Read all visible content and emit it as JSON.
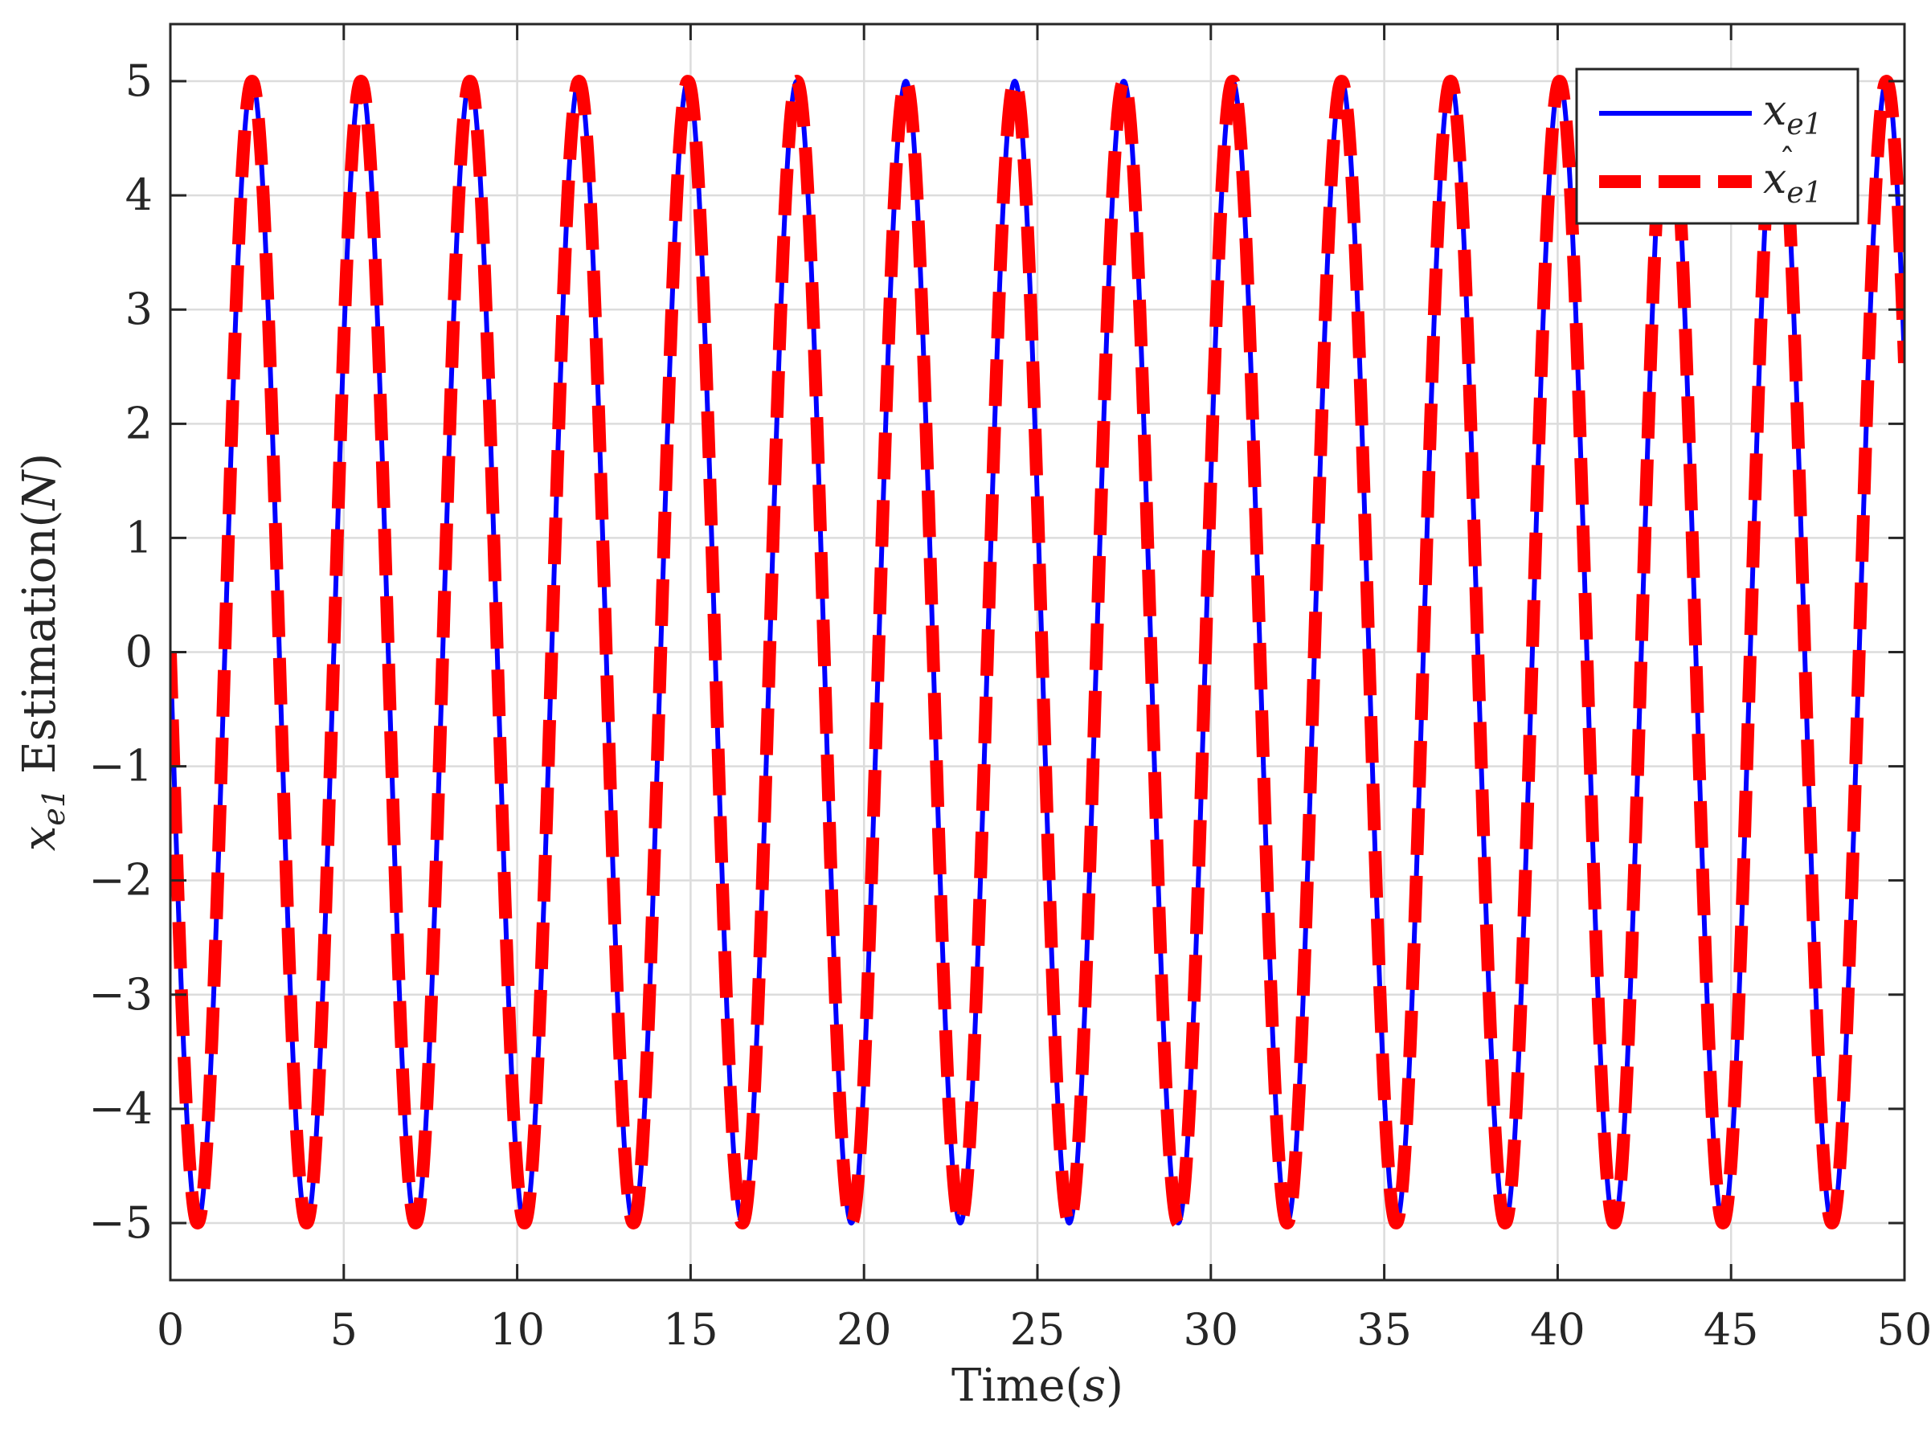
{
  "chart_data": {
    "type": "line",
    "xlabel": "Time(s)",
    "xlabel_parts": {
      "text": "Time(",
      "var": "s",
      "close": ")"
    },
    "ylabel": "x_e1 Estimation(N)",
    "ylabel_parts": {
      "var": "x",
      "sub": "e1",
      "text": " Estimation(",
      "unit": "N",
      "close": ")"
    },
    "xlim": [
      0,
      50
    ],
    "ylim": [
      -5.5,
      5.5
    ],
    "xticks": [
      0,
      5,
      10,
      15,
      20,
      25,
      30,
      35,
      40,
      45,
      50
    ],
    "xtick_labels": [
      "0",
      "5",
      "10",
      "15",
      "20",
      "25",
      "30",
      "35",
      "40",
      "45",
      "50"
    ],
    "yticks": [
      -5,
      -4,
      -3,
      -2,
      -1,
      0,
      1,
      2,
      3,
      4,
      5
    ],
    "ytick_labels": [
      "−5",
      "−4",
      "−3",
      "−2",
      "−1",
      "0",
      "1",
      "2",
      "3",
      "4",
      "5"
    ],
    "grid": true,
    "legend_position": "top-right",
    "series": [
      {
        "name": "x_e1",
        "legend_var": "x",
        "legend_sub": "e1",
        "style": "solid",
        "color": "#0000ff",
        "function": "-5*sin(2*t)",
        "t_range": [
          0,
          50
        ]
      },
      {
        "name": "x_e1 hat",
        "legend_var": "x",
        "legend_hat": "ˆ",
        "legend_sub": "e1",
        "style": "dashed",
        "color": "#ff0000",
        "function": "-5*sin(2*t)",
        "t_range": [
          0,
          50
        ]
      }
    ]
  }
}
